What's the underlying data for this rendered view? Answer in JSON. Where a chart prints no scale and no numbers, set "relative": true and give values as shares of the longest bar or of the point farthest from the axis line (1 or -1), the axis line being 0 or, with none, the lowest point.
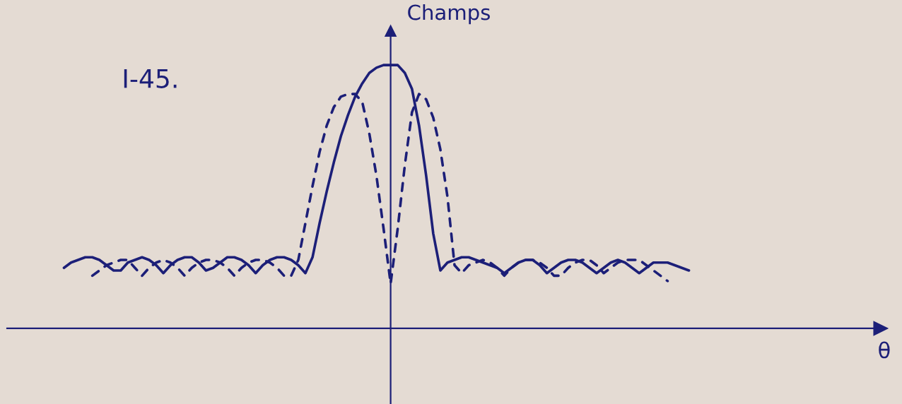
{
  "chart_data": {
    "type": "line",
    "relative": true,
    "xlabel": "θ",
    "ylabel": "Champs",
    "annotations": [
      "I-45."
    ],
    "legend": false,
    "marker": "none",
    "categories": [
      null,
      null,
      null,
      null,
      null,
      null,
      null,
      null,
      null,
      null,
      null,
      null,
      null,
      null,
      null,
      null,
      null,
      null,
      null,
      null,
      null,
      null,
      null,
      null,
      null,
      null,
      null,
      null,
      null,
      null,
      null,
      null,
      null,
      null,
      null,
      null,
      null,
      null,
      null,
      null,
      null,
      null,
      null,
      null,
      null,
      null,
      null,
      null,
      null,
      null,
      null,
      null,
      null,
      null,
      null,
      null,
      null,
      null,
      null,
      null,
      null,
      null,
      null,
      null,
      null,
      null,
      null,
      null,
      null,
      null,
      null,
      null,
      null,
      null,
      null,
      null,
      null,
      null,
      null,
      null,
      null,
      null,
      null,
      null,
      null,
      null,
      null,
      null,
      null,
      null,
      null,
      null,
      null,
      null,
      null,
      null,
      null,
      null,
      null,
      null,
      null,
      null,
      null,
      null,
      null,
      null,
      null,
      null,
      null,
      null,
      null,
      null,
      null,
      null,
      null,
      null,
      null,
      null,
      null,
      null,
      null,
      null,
      null,
      null,
      null
    ],
    "series": [
      {
        "color": "#1c1f78",
        "line_style": "solid",
        "values": [
          null,
          null,
          null,
          null,
          null,
          null,
          null,
          null,
          0.23,
          0.25,
          0.26,
          0.27,
          0.27,
          0.26,
          0.24,
          0.22,
          0.22,
          0.25,
          0.26,
          0.27,
          0.26,
          0.24,
          0.21,
          0.24,
          0.26,
          0.27,
          0.27,
          0.25,
          0.22,
          0.23,
          0.25,
          0.27,
          0.27,
          0.26,
          0.24,
          0.21,
          0.24,
          0.26,
          0.27,
          0.27,
          0.26,
          0.24,
          0.21,
          0.27,
          0.4,
          0.52,
          0.63,
          0.73,
          0.81,
          0.88,
          0.93,
          0.97,
          0.99,
          1.0,
          1.0,
          1.0,
          0.97,
          0.91,
          0.77,
          0.58,
          0.36,
          0.22,
          0.25,
          0.26,
          0.27,
          0.27,
          0.26,
          0.25,
          0.24,
          0.23,
          0.21,
          0.23,
          0.25,
          0.26,
          0.26,
          0.24,
          0.21,
          0.23,
          0.25,
          0.26,
          0.26,
          0.25,
          0.23,
          0.21,
          0.23,
          0.25,
          0.26,
          0.25,
          0.23,
          0.21,
          0.23,
          0.25,
          0.25,
          0.25,
          0.24,
          0.23,
          0.22,
          null,
          null,
          null,
          null,
          null,
          null,
          null,
          null,
          null,
          null,
          null,
          null,
          null,
          null,
          null,
          null,
          null,
          null,
          null,
          null,
          null,
          null,
          null,
          null,
          null,
          null,
          null,
          null
        ]
      },
      {
        "color": "#1c1f78",
        "line_style": "dashed",
        "values": [
          null,
          null,
          null,
          null,
          null,
          null,
          null,
          null,
          null,
          null,
          null,
          null,
          0.2,
          0.22,
          0.24,
          0.25,
          0.26,
          0.26,
          0.23,
          0.2,
          0.23,
          0.25,
          0.26,
          0.25,
          0.23,
          0.2,
          0.23,
          0.25,
          0.26,
          0.26,
          0.25,
          0.23,
          0.2,
          0.23,
          0.25,
          0.26,
          0.26,
          0.25,
          0.23,
          0.2,
          0.2,
          0.26,
          0.4,
          0.54,
          0.67,
          0.77,
          0.84,
          0.88,
          0.89,
          0.89,
          0.86,
          0.74,
          0.58,
          0.38,
          0.17,
          0.38,
          0.62,
          0.82,
          0.89,
          0.87,
          0.8,
          0.68,
          0.5,
          0.24,
          0.21,
          0.24,
          0.25,
          0.26,
          0.25,
          0.23,
          0.2,
          0.23,
          0.25,
          0.26,
          0.26,
          0.25,
          0.23,
          0.2,
          0.2,
          0.23,
          0.25,
          0.26,
          0.26,
          0.24,
          0.21,
          0.23,
          0.25,
          0.26,
          0.26,
          0.26,
          0.24,
          0.22,
          0.2,
          0.18,
          null,
          null,
          null,
          null,
          null,
          null,
          null,
          null,
          null,
          null,
          null,
          null,
          null,
          null,
          null,
          null,
          null,
          null,
          null,
          null,
          null,
          null,
          null,
          null,
          null,
          null,
          null,
          null,
          null,
          null,
          null
        ]
      }
    ]
  }
}
